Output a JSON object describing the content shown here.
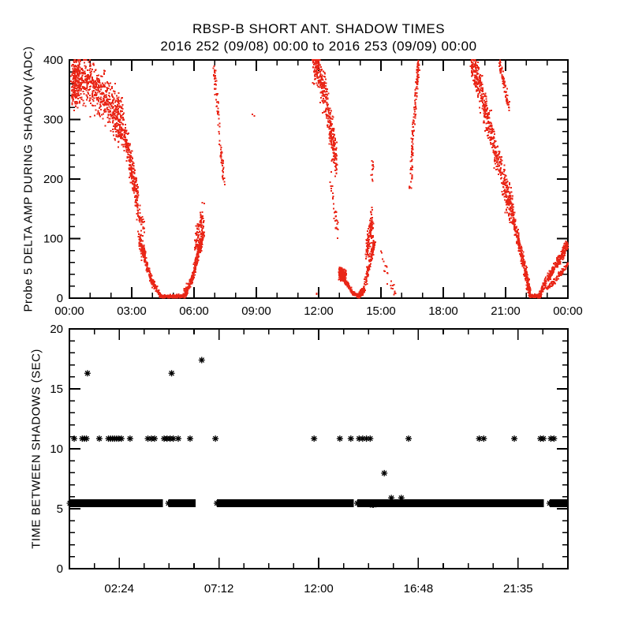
{
  "colors": {
    "background": "#ffffff",
    "axis": "#000000",
    "top_series": "#e92617",
    "bottom_series": "#000000"
  },
  "chart_data": [
    {
      "type": "scatter",
      "title": "RBSP-B SHORT ANT. SHADOW TIMES",
      "subtitle": "2016 252 (09/08) 00:00 to 2016 253 (09/09) 00:00",
      "ylabel": "Probe 5 DELTA AMP DURING SHADOW (ADC)",
      "xlabel": "",
      "xlim": [
        0,
        24
      ],
      "ylim": [
        0,
        400
      ],
      "xticks": {
        "values": [
          0,
          3,
          6,
          9,
          12,
          15,
          18,
          21,
          24
        ],
        "labels": [
          "00:00",
          "03:00",
          "06:00",
          "09:00",
          "12:00",
          "15:00",
          "18:00",
          "21:00",
          "00:00"
        ]
      },
      "xminor": 1,
      "yticks": {
        "values": [
          0,
          100,
          200,
          300,
          400
        ],
        "labels": [
          "0",
          "100",
          "200",
          "300",
          "400"
        ]
      },
      "yminor": 20,
      "grid": false,
      "legend": "none",
      "marker": {
        "shape": "dot",
        "size": 2,
        "color": "#e92617"
      },
      "point_clusters": [
        {
          "path": [
            [
              0.12,
              360
            ],
            [
              0.5,
              368
            ],
            [
              1.3,
              352
            ],
            [
              2.1,
              315
            ],
            [
              2.6,
              287
            ]
          ],
          "spread": 40,
          "n": 850
        },
        {
          "path": [
            [
              2.6,
              282
            ],
            [
              3.0,
              215
            ],
            [
              3.3,
              165
            ]
          ],
          "spread": 26,
          "n": 240
        },
        {
          "path": [
            [
              3.3,
              148
            ],
            [
              3.6,
              112
            ]
          ],
          "spread": 16,
          "n": 45
        },
        {
          "path": [
            [
              3.35,
              105
            ],
            [
              3.5,
              82
            ],
            [
              3.65,
              68
            ]
          ],
          "spread": 13,
          "n": 110
        },
        {
          "path": [
            [
              3.65,
              62
            ],
            [
              4.0,
              26
            ],
            [
              4.35,
              7
            ]
          ],
          "spread": 5,
          "n": 150
        },
        {
          "path": [
            [
              4.35,
              3
            ],
            [
              5.55,
              3
            ]
          ],
          "spread": 2.5,
          "n": 220
        },
        {
          "path": [
            [
              5.55,
              7
            ],
            [
              5.9,
              30
            ],
            [
              6.2,
              75
            ],
            [
              6.45,
              108
            ]
          ],
          "spread": 8,
          "n": 240
        },
        {
          "path": [
            [
              6.05,
              80
            ],
            [
              6.45,
              135
            ]
          ],
          "spread": 26,
          "n": 110
        },
        {
          "path": [
            [
              6.95,
              392
            ],
            [
              7.1,
              330
            ],
            [
              7.3,
              245
            ],
            [
              7.45,
              195
            ]
          ],
          "spread": 10,
          "n": 85
        },
        {
          "path": [
            [
              8.85,
              310
            ],
            [
              8.9,
              308
            ]
          ],
          "spread": 2,
          "n": 2
        },
        {
          "path": [
            [
              11.72,
              398
            ],
            [
              12.0,
              382
            ],
            [
              12.35,
              335
            ],
            [
              12.65,
              268
            ],
            [
              12.85,
              230
            ]
          ],
          "spread": 33,
          "n": 400
        },
        {
          "path": [
            [
              12.6,
              195
            ],
            [
              12.9,
              115
            ]
          ],
          "spread": 22,
          "n": 32
        },
        {
          "path": [
            [
              11.85,
              8
            ],
            [
              11.9,
              9
            ]
          ],
          "spread": 2,
          "n": 2
        },
        {
          "path": [
            [
              13.02,
              42
            ],
            [
              13.3,
              35
            ]
          ],
          "spread": 10,
          "n": 260
        },
        {
          "path": [
            [
              13.3,
              28
            ],
            [
              13.65,
              8
            ],
            [
              13.95,
              3
            ]
          ],
          "spread": 2.2,
          "n": 150
        },
        {
          "path": [
            [
              13.95,
              3
            ],
            [
              14.15,
              13
            ],
            [
              14.45,
              55
            ],
            [
              14.68,
              95
            ]
          ],
          "spread": 6,
          "n": 190
        },
        {
          "path": [
            [
              14.3,
              75
            ],
            [
              14.6,
              128
            ]
          ],
          "spread": 26,
          "n": 110
        },
        {
          "path": [
            [
              14.5,
              195
            ],
            [
              14.62,
              228
            ]
          ],
          "spread": 15,
          "n": 12
        },
        {
          "path": [
            [
              15.05,
              62
            ],
            [
              15.35,
              30
            ],
            [
              15.7,
              14
            ]
          ],
          "spread": 16,
          "n": 22
        },
        {
          "path": [
            [
              16.42,
              185
            ],
            [
              16.52,
              265
            ],
            [
              16.68,
              340
            ],
            [
              16.82,
              398
            ]
          ],
          "spread": 7,
          "n": 120
        },
        {
          "path": [
            [
              19.35,
              398
            ],
            [
              19.7,
              362
            ],
            [
              20.1,
              305
            ],
            [
              20.6,
              235
            ],
            [
              21.05,
              178
            ],
            [
              21.35,
              148
            ]
          ],
          "spread": 28,
          "n": 560
        },
        {
          "path": [
            [
              20.72,
              398
            ],
            [
              20.95,
              358
            ],
            [
              21.15,
              318
            ]
          ],
          "spread": 9,
          "n": 75
        },
        {
          "path": [
            [
              21.3,
              148
            ],
            [
              21.65,
              92
            ],
            [
              21.95,
              42
            ],
            [
              22.15,
              12
            ]
          ],
          "spread": 13,
          "n": 300
        },
        {
          "path": [
            [
              22.15,
              4
            ],
            [
              22.65,
              3
            ]
          ],
          "spread": 2.5,
          "n": 140
        },
        {
          "path": [
            [
              22.65,
              8
            ],
            [
              23.2,
              42
            ],
            [
              23.7,
              72
            ],
            [
              24,
              92
            ]
          ],
          "spread": 8,
          "n": 280
        },
        {
          "path": [
            [
              22.95,
              14
            ],
            [
              23.6,
              38
            ],
            [
              24,
              58
            ]
          ],
          "spread": 3.5,
          "n": 110
        }
      ]
    },
    {
      "type": "scatter",
      "title": "",
      "ylabel": "TIME BETWEEN SHADOWS (SEC)",
      "xlabel": "",
      "xlim": [
        0,
        24
      ],
      "ylim": [
        0,
        20
      ],
      "xticks": {
        "values": [
          2.4,
          7.2,
          12,
          16.8,
          21.6
        ],
        "labels": [
          "02:24",
          "07:12",
          "12:00",
          "16:48",
          "21:35"
        ]
      },
      "xminor": 1.2,
      "yticks": {
        "values": [
          0,
          5,
          10,
          15,
          20
        ],
        "labels": [
          "0",
          "5",
          "10",
          "15",
          "20"
        ]
      },
      "yminor": 1,
      "grid": false,
      "legend": "none",
      "marker": {
        "shape": "asterisk",
        "size": 4,
        "color": "#000000"
      },
      "dense_band": {
        "value": 5.46,
        "half_height": 0.33,
        "segments": [
          [
            0.02,
            4.5
          ],
          [
            4.77,
            6.08
          ],
          [
            7.1,
            13.68
          ],
          [
            13.86,
            22.85
          ],
          [
            23.12,
            23.98
          ]
        ]
      },
      "points": [
        [
          0.23,
          10.85
        ],
        [
          0.62,
          10.85
        ],
        [
          0.72,
          10.85
        ],
        [
          0.82,
          10.85
        ],
        [
          1.44,
          10.85
        ],
        [
          1.88,
          10.85
        ],
        [
          1.98,
          10.85
        ],
        [
          2.08,
          10.85
        ],
        [
          2.18,
          10.85
        ],
        [
          2.28,
          10.85
        ],
        [
          2.38,
          10.85
        ],
        [
          2.5,
          10.85
        ],
        [
          2.92,
          10.85
        ],
        [
          3.78,
          10.85
        ],
        [
          3.95,
          10.85
        ],
        [
          4.1,
          10.85
        ],
        [
          4.56,
          10.85
        ],
        [
          4.7,
          10.85
        ],
        [
          4.85,
          10.85
        ],
        [
          5.0,
          10.85
        ],
        [
          5.24,
          10.85
        ],
        [
          5.81,
          10.85
        ],
        [
          7.03,
          10.85
        ],
        [
          11.78,
          10.85
        ],
        [
          13.02,
          10.85
        ],
        [
          13.55,
          10.85
        ],
        [
          13.95,
          10.85
        ],
        [
          14.12,
          10.85
        ],
        [
          14.3,
          10.85
        ],
        [
          14.48,
          10.85
        ],
        [
          16.33,
          10.85
        ],
        [
          19.73,
          10.85
        ],
        [
          19.95,
          10.85
        ],
        [
          21.42,
          10.85
        ],
        [
          22.68,
          10.85
        ],
        [
          22.82,
          10.85
        ],
        [
          23.18,
          10.85
        ],
        [
          23.33,
          10.85
        ],
        [
          0.87,
          16.3
        ],
        [
          4.92,
          16.3
        ],
        [
          6.37,
          17.4
        ],
        [
          15.16,
          7.97
        ],
        [
          15.5,
          5.9
        ],
        [
          15.98,
          5.9
        ],
        [
          16.0,
          5.6
        ]
      ],
      "small_points": [
        [
          14.5,
          5.2
        ],
        [
          14.62,
          5.18
        ],
        [
          14.75,
          5.22
        ]
      ]
    }
  ]
}
